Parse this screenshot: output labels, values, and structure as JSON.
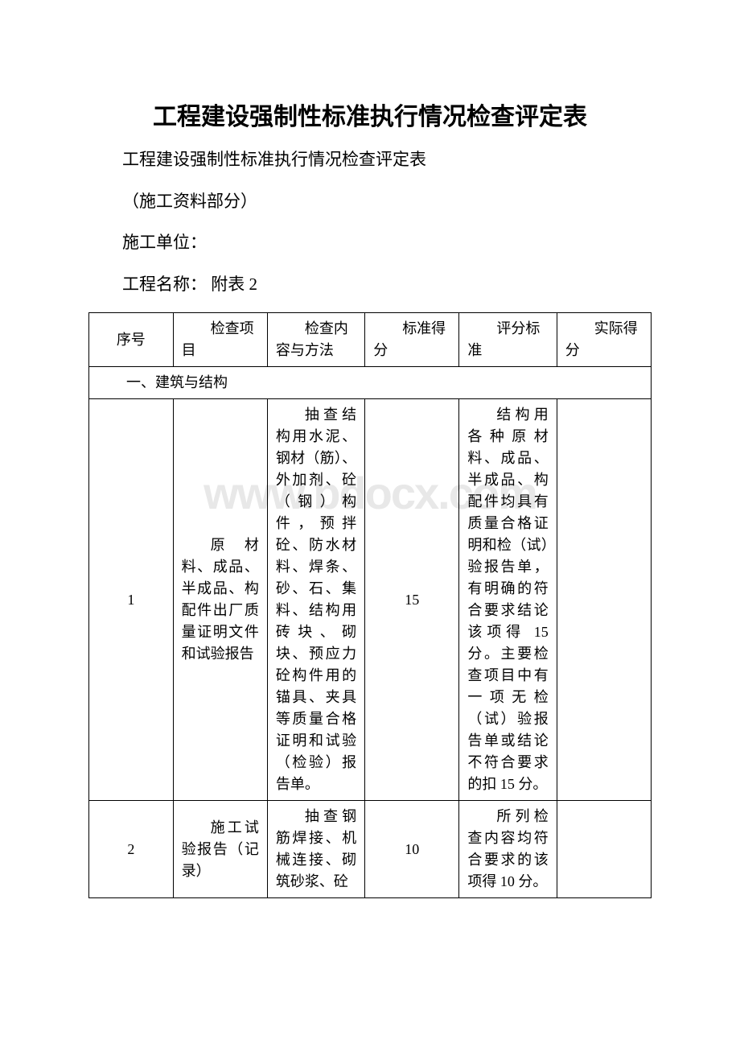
{
  "title": "工程建设强制性标准执行情况检查评定表",
  "subtitle": "工程建设强制性标准执行情况检查评定表",
  "section_label": "（施工资料部分）",
  "unit_label": "施工单位：",
  "project_label": "工程名称： 附表 2",
  "watermark": "www.bdocx.com",
  "table": {
    "headers": {
      "seq": "序号",
      "item": "检查项目",
      "method": "检查内容与方法",
      "score": "标准得分",
      "criteria": "评分标准",
      "actual": "实际得分"
    },
    "section": "一、建筑与结构",
    "rows": [
      {
        "seq": "1",
        "item": "原材料、成品、半成品、构配件出厂质量证明文件和试验报告",
        "method": "抽查结构用水泥、钢材（筋）、外加剂、砼（钢）构件，预拌砼、防水材料、焊条、砂、石、集料、结构用砖块、砌块、预应力砼构件用的锚具、夹具等质量合格证明和试验（检验）报告单。",
        "score": "15",
        "criteria": "结构用各种原材料、成品、半成品、构配件均具有质量合格证明和检（试）验报告单，有明确的符合要求结论该项得 15 分。主要检查项目中有一项无检（试）验报告单或结论不符合要求的扣 15 分。",
        "actual": ""
      },
      {
        "seq": "2",
        "item": "施工试验报告（记录）",
        "method": "抽查钢筋焊接、机械连接、砌筑砂浆、砼",
        "score": "10",
        "criteria": "所列检查内容均符合要求的该项得 10 分。",
        "actual": ""
      }
    ]
  },
  "colors": {
    "text": "#000000",
    "background": "#ffffff",
    "border": "#000000",
    "watermark": "#e8e8e8"
  },
  "typography": {
    "title_fontsize": 30,
    "title_weight": "bold",
    "body_fontsize": 21,
    "table_fontsize": 18,
    "font_family": "SimSun"
  },
  "table_layout": {
    "column_widths_pct": [
      12.5,
      14,
      14.5,
      14,
      14.5,
      14
    ],
    "border_width": 1
  }
}
